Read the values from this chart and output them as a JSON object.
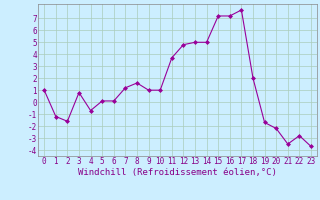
{
  "x": [
    0,
    1,
    2,
    3,
    4,
    5,
    6,
    7,
    8,
    9,
    10,
    11,
    12,
    13,
    14,
    15,
    16,
    17,
    18,
    19,
    20,
    21,
    22,
    23
  ],
  "y": [
    1.0,
    -1.2,
    -1.6,
    0.8,
    -0.7,
    0.1,
    0.1,
    1.2,
    1.6,
    1.0,
    1.0,
    3.7,
    4.8,
    5.0,
    5.0,
    7.2,
    7.2,
    7.7,
    2.0,
    -1.7,
    -2.2,
    -3.5,
    -2.8,
    -3.7
  ],
  "line_color": "#990099",
  "marker": "D",
  "marker_size": 2,
  "bg_color": "#cceeff",
  "grid_color": "#aaccbb",
  "xlabel": "Windchill (Refroidissement éolien,°C)",
  "xlim": [
    -0.5,
    23.5
  ],
  "ylim": [
    -4.5,
    8.2
  ],
  "yticks": [
    -4,
    -3,
    -2,
    -1,
    0,
    1,
    2,
    3,
    4,
    5,
    6,
    7
  ],
  "xticks": [
    0,
    1,
    2,
    3,
    4,
    5,
    6,
    7,
    8,
    9,
    10,
    11,
    12,
    13,
    14,
    15,
    16,
    17,
    18,
    19,
    20,
    21,
    22,
    23
  ],
  "xlabel_color": "#880088",
  "tick_color": "#880088",
  "spine_color": "#888888",
  "tick_fontsize": 5.5,
  "xlabel_fontsize": 6.5
}
